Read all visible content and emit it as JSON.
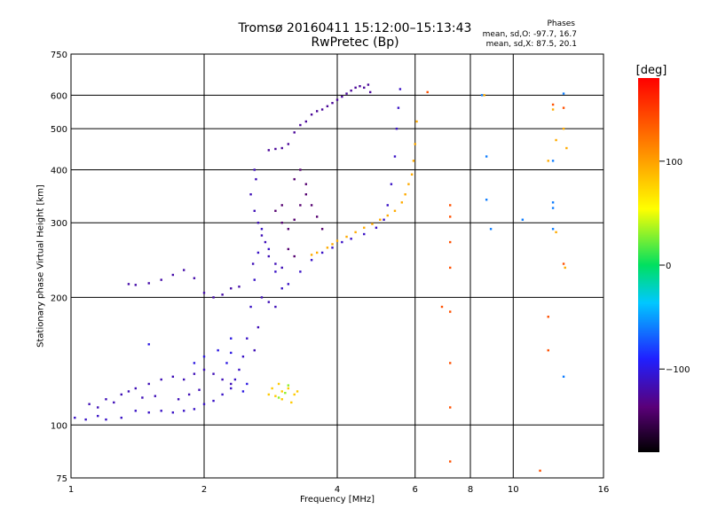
{
  "chart_data": {
    "type": "scatter",
    "title": "Tromsø 20160411 15:12:00–15:13:43",
    "subtitle": "RwPretec (Bp)",
    "xlabel": "Frequency [MHz]",
    "ylabel": "Stationary phase Virtual Height [km]",
    "x_scale": "log",
    "y_scale": "log",
    "xlim": [
      1,
      16
    ],
    "ylim": [
      75,
      750
    ],
    "x_ticks": [
      1,
      2,
      4,
      6,
      8,
      10,
      16
    ],
    "x_tick_labels": [
      "1",
      "2",
      "4",
      "6",
      "8",
      "10",
      "16"
    ],
    "y_ticks": [
      75,
      100,
      200,
      300,
      400,
      500,
      600,
      750
    ],
    "y_tick_labels": [
      "75",
      "100",
      "200",
      "300",
      "400",
      "500",
      "600",
      "750"
    ],
    "grid": true,
    "phase_stats": {
      "header": "Phases",
      "o_line": "mean, sd,O: -97.7, 16.7",
      "x_line": "mean, sd,X:  87.5, 20.1"
    },
    "colorbar": {
      "label": "[deg]",
      "min": -180,
      "max": 180,
      "ticks": [
        100,
        0,
        -100
      ],
      "tick_labels": [
        "100",
        "0",
        "−100"
      ]
    },
    "series": [
      {
        "color_phase": -110,
        "points": [
          [
            1.02,
            104
          ],
          [
            1.08,
            103
          ],
          [
            1.15,
            105
          ],
          [
            1.2,
            103
          ],
          [
            1.3,
            104
          ],
          [
            1.4,
            108
          ],
          [
            1.5,
            107
          ],
          [
            1.6,
            108
          ],
          [
            1.7,
            107
          ],
          [
            1.8,
            108
          ],
          [
            1.9,
            109
          ],
          [
            2.0,
            112
          ],
          [
            2.1,
            114
          ],
          [
            2.2,
            118
          ],
          [
            2.3,
            122
          ],
          [
            2.35,
            128
          ],
          [
            2.4,
            135
          ],
          [
            2.45,
            145
          ],
          [
            2.5,
            160
          ],
          [
            2.55,
            190
          ],
          [
            2.6,
            220
          ],
          [
            2.65,
            255
          ],
          [
            2.7,
            290
          ],
          [
            2.8,
            260
          ],
          [
            2.9,
            230
          ],
          [
            3.0,
            210
          ],
          [
            3.1,
            215
          ],
          [
            3.3,
            230
          ],
          [
            3.5,
            245
          ],
          [
            3.7,
            255
          ],
          [
            3.9,
            262
          ],
          [
            4.1,
            270
          ],
          [
            4.3,
            275
          ],
          [
            4.6,
            282
          ],
          [
            4.9,
            292
          ],
          [
            5.1,
            305
          ],
          [
            5.2,
            330
          ],
          [
            5.3,
            370
          ],
          [
            5.4,
            430
          ],
          [
            5.45,
            500
          ],
          [
            5.5,
            560
          ],
          [
            5.55,
            620
          ]
        ]
      },
      {
        "color_phase": -120,
        "points": [
          [
            1.35,
            215
          ],
          [
            1.4,
            214
          ],
          [
            1.5,
            216
          ],
          [
            1.6,
            220
          ],
          [
            1.7,
            226
          ],
          [
            1.8,
            232
          ],
          [
            1.9,
            222
          ],
          [
            2.0,
            205
          ],
          [
            2.1,
            200
          ],
          [
            2.2,
            203
          ],
          [
            2.3,
            210
          ],
          [
            2.4,
            212
          ]
        ]
      },
      {
        "color_phase": -115,
        "points": [
          [
            2.55,
            350
          ],
          [
            2.6,
            320
          ],
          [
            2.65,
            300
          ],
          [
            2.7,
            280
          ],
          [
            2.75,
            270
          ],
          [
            2.8,
            250
          ],
          [
            2.9,
            240
          ],
          [
            3.0,
            235
          ],
          [
            2.6,
            400
          ],
          [
            2.62,
            380
          ],
          [
            2.58,
            240
          ],
          [
            2.7,
            200
          ],
          [
            2.8,
            195
          ],
          [
            2.9,
            190
          ],
          [
            2.65,
            170
          ],
          [
            2.6,
            150
          ]
        ]
      },
      {
        "color_phase": -140,
        "points": [
          [
            3.0,
            300
          ],
          [
            3.1,
            290
          ],
          [
            3.2,
            305
          ],
          [
            3.3,
            330
          ],
          [
            3.4,
            350
          ],
          [
            3.5,
            330
          ],
          [
            3.6,
            310
          ],
          [
            3.7,
            290
          ],
          [
            3.2,
            380
          ],
          [
            3.3,
            400
          ],
          [
            3.4,
            370
          ],
          [
            3.0,
            330
          ],
          [
            2.9,
            320
          ],
          [
            3.1,
            260
          ],
          [
            3.2,
            250
          ]
        ]
      },
      {
        "color_phase": -125,
        "points": [
          [
            3.4,
            520
          ],
          [
            3.5,
            540
          ],
          [
            3.6,
            550
          ],
          [
            3.7,
            555
          ],
          [
            3.8,
            565
          ],
          [
            3.9,
            575
          ],
          [
            4.0,
            585
          ],
          [
            4.1,
            595
          ],
          [
            4.2,
            605
          ],
          [
            4.3,
            615
          ],
          [
            4.4,
            625
          ],
          [
            4.5,
            630
          ],
          [
            4.6,
            625
          ],
          [
            4.7,
            635
          ],
          [
            4.75,
            610
          ],
          [
            3.3,
            510
          ],
          [
            3.2,
            490
          ],
          [
            3.1,
            460
          ],
          [
            3.0,
            450
          ],
          [
            2.9,
            448
          ],
          [
            2.8,
            445
          ]
        ]
      },
      {
        "color_phase": -115,
        "points": [
          [
            1.1,
            112
          ],
          [
            1.15,
            110
          ],
          [
            1.2,
            115
          ],
          [
            1.3,
            118
          ],
          [
            1.35,
            120
          ],
          [
            1.4,
            122
          ],
          [
            1.5,
            125
          ],
          [
            1.6,
            128
          ],
          [
            1.7,
            130
          ],
          [
            1.8,
            128
          ],
          [
            1.9,
            132
          ],
          [
            2.0,
            135
          ],
          [
            2.1,
            132
          ],
          [
            2.2,
            128
          ],
          [
            2.3,
            125
          ],
          [
            1.25,
            113
          ],
          [
            1.45,
            116
          ],
          [
            1.55,
            117
          ],
          [
            1.75,
            115
          ],
          [
            1.85,
            118
          ],
          [
            1.95,
            121
          ]
        ]
      },
      {
        "color_phase": 95,
        "points": [
          [
            3.8,
            262
          ],
          [
            3.9,
            267
          ],
          [
            4.0,
            272
          ],
          [
            4.2,
            278
          ],
          [
            4.4,
            285
          ],
          [
            4.6,
            292
          ],
          [
            4.8,
            298
          ],
          [
            5.0,
            305
          ],
          [
            5.2,
            312
          ],
          [
            5.4,
            320
          ],
          [
            5.6,
            335
          ],
          [
            5.7,
            350
          ],
          [
            5.8,
            370
          ],
          [
            5.9,
            390
          ],
          [
            5.95,
            420
          ],
          [
            6.0,
            460
          ],
          [
            6.05,
            520
          ],
          [
            3.6,
            255
          ],
          [
            3.5,
            252
          ]
        ]
      },
      {
        "color_phase": 80,
        "points": [
          [
            2.8,
            118
          ],
          [
            2.9,
            117
          ],
          [
            3.0,
            120
          ],
          [
            3.1,
            122
          ],
          [
            3.2,
            118
          ],
          [
            3.0,
            115
          ],
          [
            2.95,
            125
          ],
          [
            3.15,
            113
          ],
          [
            3.25,
            120
          ],
          [
            2.85,
            122
          ]
        ]
      },
      {
        "color_phase": 30,
        "points": [
          [
            3.05,
            119
          ],
          [
            3.1,
            124
          ],
          [
            2.95,
            116
          ]
        ]
      },
      {
        "color_phase": 140,
        "points": [
          [
            6.4,
            610
          ],
          [
            7.2,
            330
          ],
          [
            7.2,
            310
          ],
          [
            7.2,
            270
          ],
          [
            7.2,
            235
          ],
          [
            7.2,
            185
          ],
          [
            7.2,
            140
          ],
          [
            7.2,
            110
          ],
          [
            7.2,
            82
          ],
          [
            12.0,
            150
          ],
          [
            12.0,
            180
          ],
          [
            11.5,
            78
          ],
          [
            12.3,
            570
          ],
          [
            13.0,
            240
          ],
          [
            13.0,
            560
          ],
          [
            6.9,
            190
          ]
        ]
      },
      {
        "color_phase": -60,
        "points": [
          [
            8.5,
            600
          ],
          [
            8.7,
            430
          ],
          [
            8.7,
            340
          ],
          [
            8.9,
            290
          ],
          [
            10.5,
            305
          ],
          [
            12.3,
            420
          ],
          [
            12.3,
            335
          ],
          [
            12.3,
            325
          ],
          [
            12.3,
            290
          ],
          [
            13.0,
            130
          ],
          [
            13.0,
            605
          ]
        ]
      },
      {
        "color_phase": 95,
        "points": [
          [
            12.3,
            555
          ],
          [
            12.5,
            470
          ],
          [
            13.0,
            500
          ],
          [
            13.2,
            450
          ],
          [
            12.5,
            285
          ],
          [
            13.1,
            235
          ],
          [
            12.0,
            420
          ],
          [
            8.6,
            600
          ]
        ]
      },
      {
        "color_phase": -100,
        "points": [
          [
            1.5,
            155
          ],
          [
            2.3,
            160
          ],
          [
            2.0,
            145
          ],
          [
            1.9,
            140
          ],
          [
            2.15,
            150
          ],
          [
            2.25,
            140
          ],
          [
            2.3,
            148
          ],
          [
            2.45,
            120
          ],
          [
            2.5,
            125
          ]
        ]
      }
    ]
  }
}
